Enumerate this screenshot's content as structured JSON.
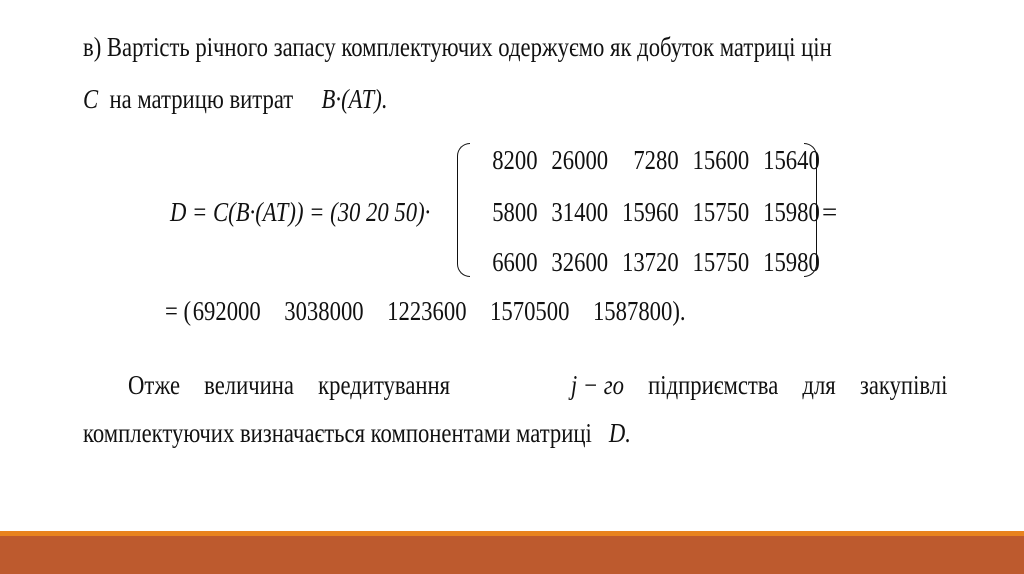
{
  "intro": {
    "line1": "в) Вартість річного запасу комплектуючих одержуємо як добуток матриці цін",
    "line2_var": "C",
    "line2_text": "на матрицю витрат",
    "line2_expr": "B·(AT)."
  },
  "formula": {
    "lhs": "D = C(B·(AT)) = (30   20   50)·",
    "matrix": [
      [
        "8200",
        "26000",
        "7280",
        "15600",
        "15640"
      ],
      [
        "5800",
        "31400",
        "15960",
        "15750",
        "15980"
      ],
      [
        "6600",
        "32600",
        "13720",
        "15750",
        "15980"
      ]
    ],
    "equals": "=",
    "result_prefix": "= (",
    "result": [
      "692000",
      "3038000",
      "1223600",
      "1570500",
      "1587800"
    ],
    "result_suffix": ")."
  },
  "conclusion": {
    "part1": "Отже величина кредитування",
    "var": "j − го",
    "part2": "підприємства для закупівлі",
    "line2": "комплектуючих визначається компонентами матриці",
    "line2_var": "D."
  },
  "colors": {
    "accent_line": "#e8831f",
    "footer_band": "#bd5a2e"
  }
}
